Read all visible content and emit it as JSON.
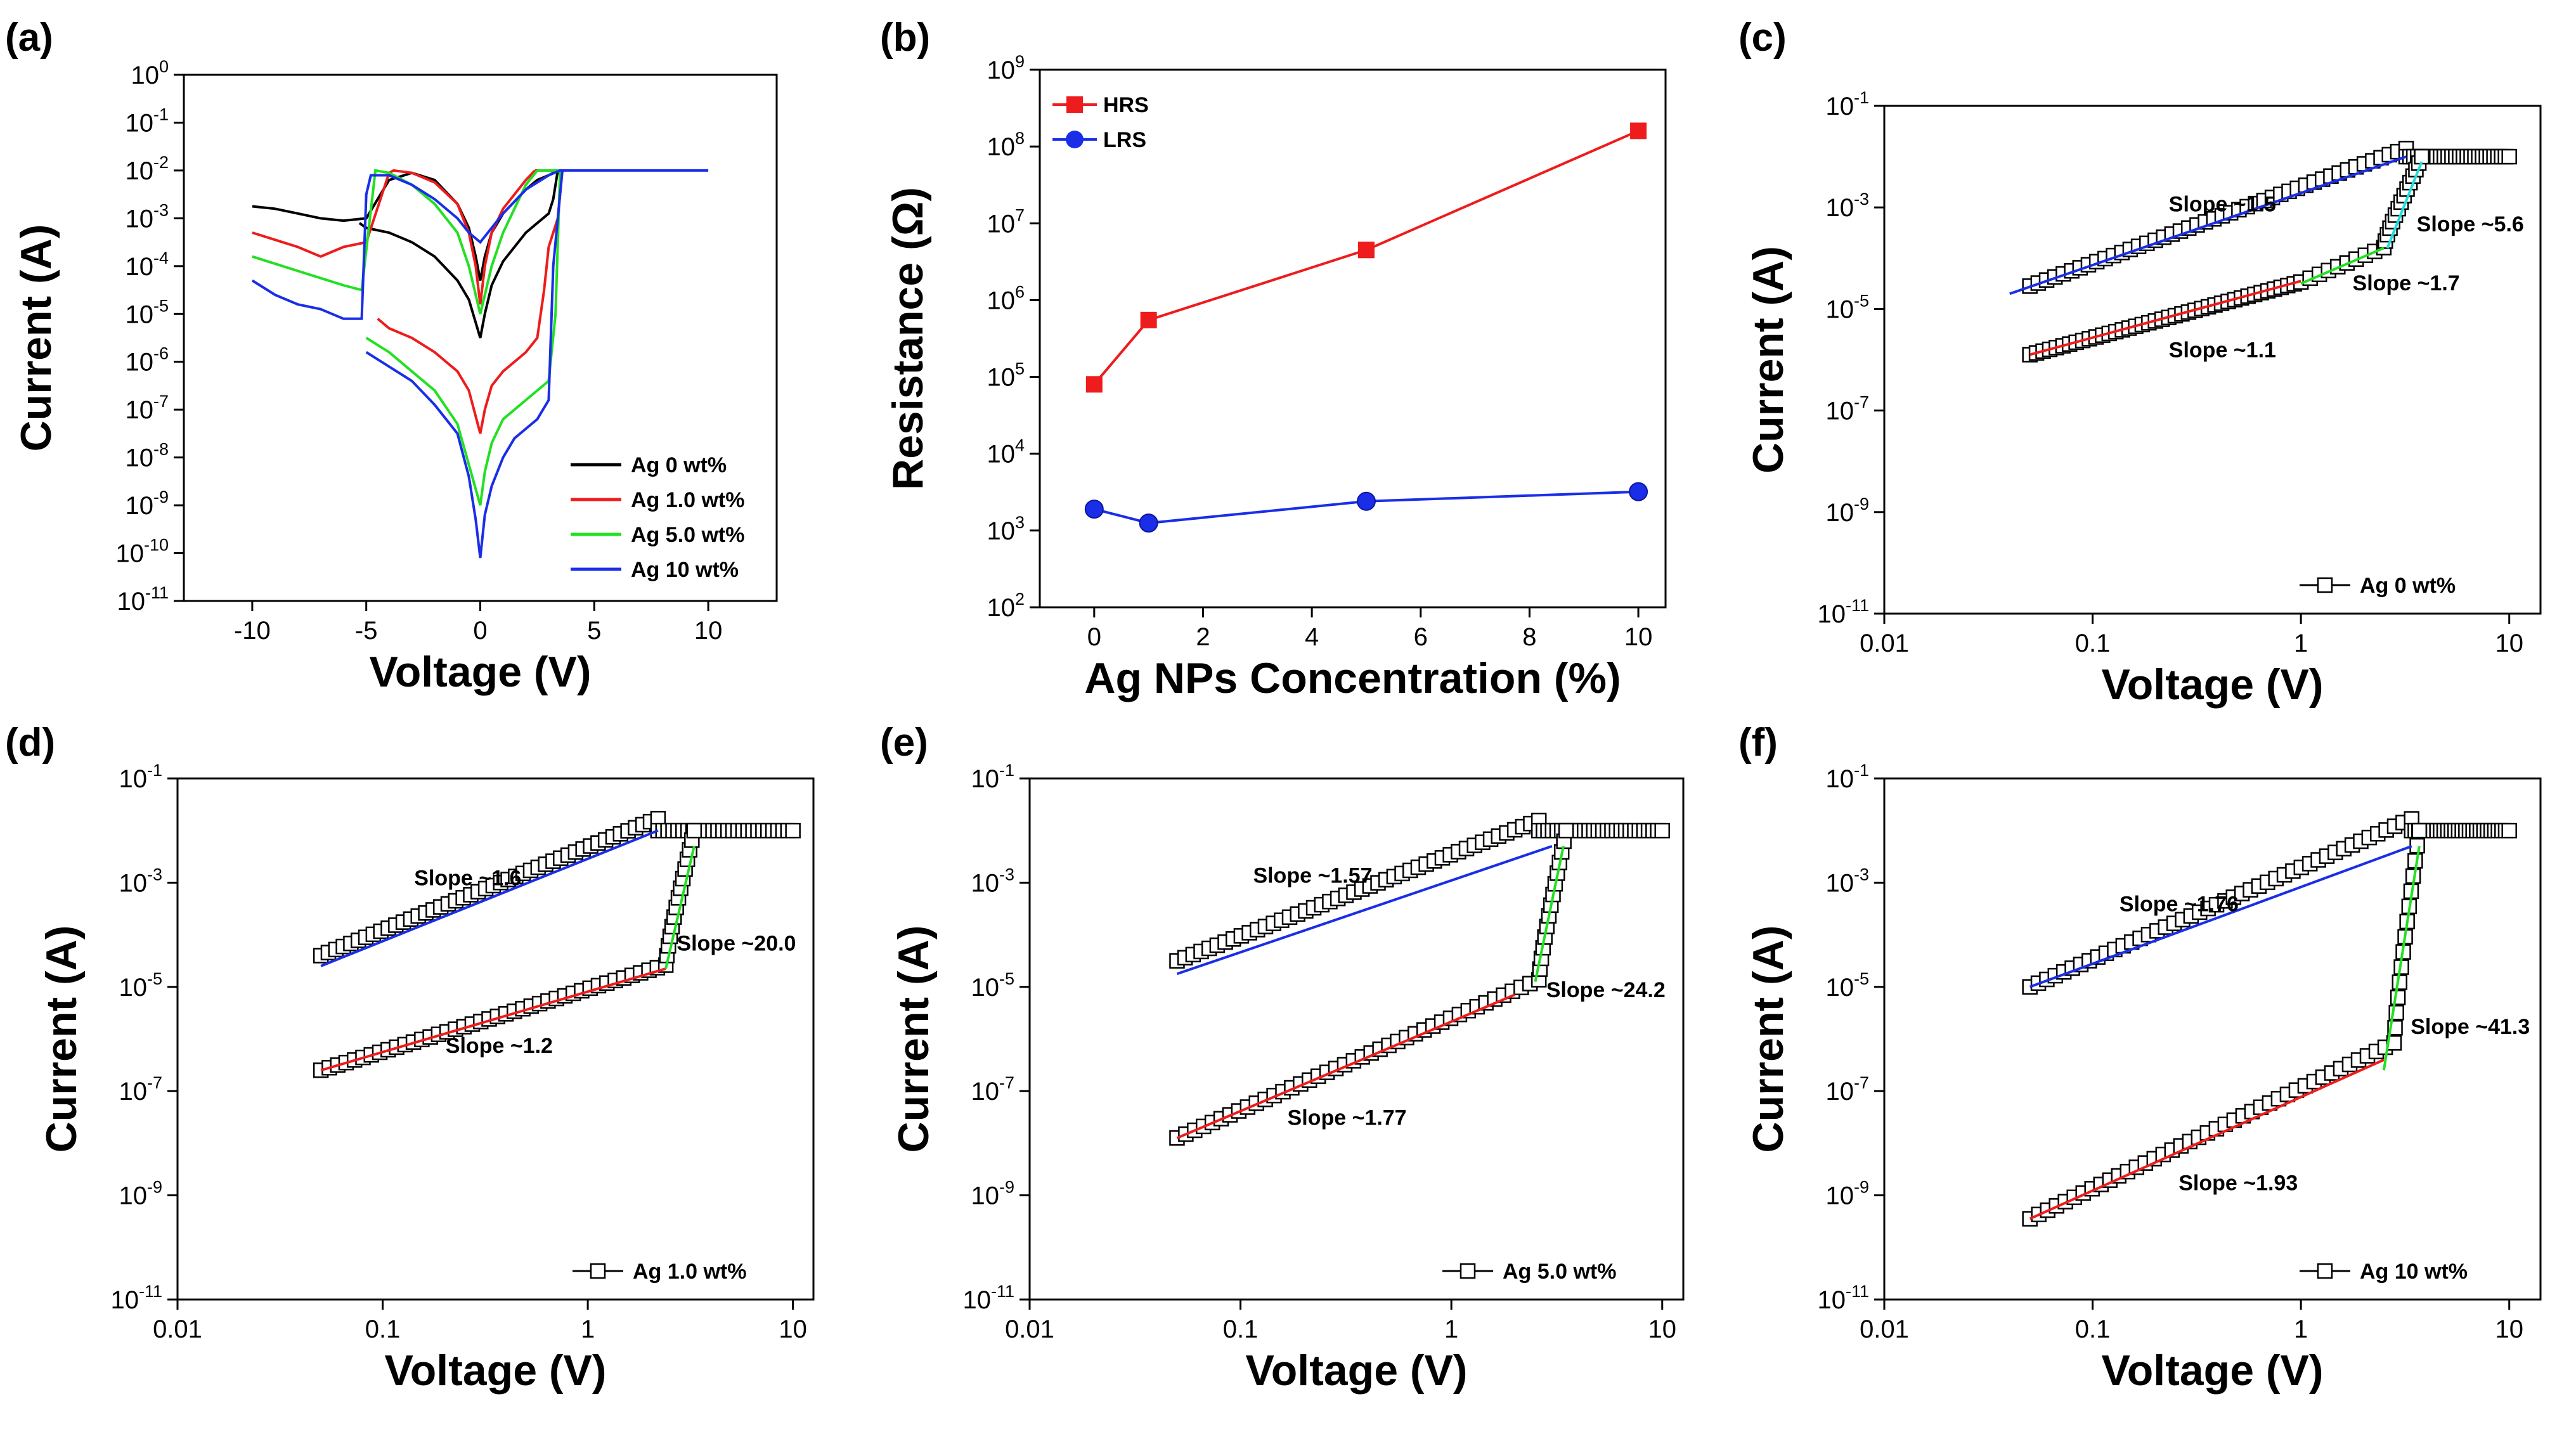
{
  "chart_data": [
    {
      "id": "a",
      "panel_label": "(a)",
      "type": "line",
      "xlabel": "Voltage (V)",
      "ylabel": "Current (A)",
      "x_scale": "linear",
      "y_scale": "log",
      "xlim": [
        -13,
        13
      ],
      "ylim_exp": [
        -11,
        0
      ],
      "x_ticks": [
        -10,
        -5,
        0,
        5,
        10
      ],
      "x_tick_labels": [
        "-10",
        "-5",
        "0",
        "5",
        "10"
      ],
      "y_tick_exps": [
        0,
        -1,
        -2,
        -3,
        -4,
        -5,
        -6,
        -7,
        -8,
        -9,
        -10,
        -11
      ],
      "legend": {
        "position": "bottom-right",
        "entries": [
          "Ag 0 wt%",
          "Ag 1.0 wt%",
          "Ag 5.0 wt%",
          "Ag 10 wt%"
        ]
      },
      "compliance_current_A": 0.01,
      "series": [
        {
          "name": "Ag 0 wt%",
          "color": "#000000",
          "sweep_x": [
            -10,
            -9,
            -8,
            -7,
            -6,
            -5,
            -4.5,
            -4,
            -3,
            -2,
            -1,
            -0.5,
            -0.2,
            0,
            0.2,
            0.5,
            1,
            2,
            2.5,
            3,
            3.4
          ],
          "sweep_log_i": [
            -2.75,
            -2.8,
            -2.9,
            -3.0,
            -3.05,
            -3.0,
            -2.6,
            -2.2,
            -2.05,
            -2.2,
            -2.7,
            -3.2,
            -3.8,
            -4.3,
            -3.8,
            -3.3,
            -2.9,
            -2.4,
            -2.2,
            -2.1,
            -2.0
          ],
          "ret_x": [
            3.4,
            3.2,
            3,
            2,
            1,
            0.5,
            0.2,
            0,
            -0.5,
            -1,
            -2,
            -3,
            -4,
            -5,
            -5.3
          ],
          "ret_log_i": [
            -2.0,
            -2.6,
            -2.9,
            -3.3,
            -3.9,
            -4.4,
            -5.0,
            -5.5,
            -4.7,
            -4.3,
            -3.8,
            -3.5,
            -3.3,
            -3.2,
            -3.1
          ]
        },
        {
          "name": "Ag 1.0 wt%",
          "color": "#ee1c1c",
          "sweep_x": [
            -10,
            -8,
            -7,
            -6,
            -5,
            -4,
            -3.8,
            -3,
            -2,
            -1,
            -0.5,
            -0.2,
            0,
            0.2,
            0.5,
            1,
            2,
            2.4
          ],
          "sweep_log_i": [
            -3.3,
            -3.6,
            -3.8,
            -3.6,
            -3.5,
            -2.05,
            -2.0,
            -2.05,
            -2.25,
            -2.7,
            -3.3,
            -4.0,
            -4.8,
            -4.0,
            -3.3,
            -2.8,
            -2.2,
            -2.0
          ],
          "ret_x": [
            3.6,
            3.4,
            3,
            2.8,
            2.5,
            2,
            1,
            0.5,
            0.2,
            0,
            -0.5,
            -1,
            -2,
            -3,
            -4,
            -4.5
          ],
          "ret_log_i": [
            -2.0,
            -3.0,
            -3.6,
            -4.5,
            -5.5,
            -5.8,
            -6.2,
            -6.5,
            -7.0,
            -7.5,
            -6.6,
            -6.2,
            -5.8,
            -5.5,
            -5.3,
            -5.1
          ]
        },
        {
          "name": "Ag 5.0 wt%",
          "color": "#22e022",
          "sweep_x": [
            -10,
            -8,
            -6,
            -5.2,
            -4.6,
            -4,
            -3,
            -2,
            -1,
            -0.5,
            -0.2,
            0,
            0.2,
            0.5,
            1,
            2,
            2.5
          ],
          "sweep_log_i": [
            -3.8,
            -4.1,
            -4.4,
            -4.5,
            -2.0,
            -2.05,
            -2.3,
            -2.7,
            -3.3,
            -4.0,
            -4.6,
            -5.0,
            -4.6,
            -4.0,
            -3.3,
            -2.3,
            -2.0
          ],
          "ret_x": [
            3.5,
            3.3,
            3,
            2,
            1,
            0.5,
            0.2,
            0,
            -1,
            -2,
            -3,
            -4,
            -5
          ],
          "ret_log_i": [
            -2.0,
            -5.0,
            -6.4,
            -6.8,
            -7.2,
            -7.7,
            -8.3,
            -9.0,
            -7.3,
            -6.6,
            -6.2,
            -5.8,
            -5.5
          ]
        },
        {
          "name": "Ag 10 wt%",
          "color": "#1a2ee8",
          "sweep_x": [
            -10,
            -9,
            -8,
            -7,
            -6,
            -5.2,
            -5,
            -4.8,
            -4,
            -3,
            -2,
            -1,
            -0.5,
            0,
            0.5,
            1,
            2,
            3,
            3.5,
            10
          ],
          "sweep_log_i": [
            -4.3,
            -4.6,
            -4.8,
            -4.9,
            -5.1,
            -5.1,
            -2.5,
            -2.1,
            -2.1,
            -2.3,
            -2.6,
            -3.0,
            -3.3,
            -3.5,
            -3.2,
            -2.9,
            -2.4,
            -2.1,
            -2.0,
            -2.0
          ],
          "ret_x": [
            3.6,
            3.2,
            3,
            2.5,
            2,
            1.5,
            1,
            0.5,
            0.2,
            0,
            -0.2,
            -0.5,
            -1,
            -2,
            -3,
            -4,
            -5
          ],
          "ret_log_i": [
            -2.0,
            -4.0,
            -6.8,
            -7.2,
            -7.4,
            -7.6,
            -8.0,
            -8.6,
            -9.2,
            -10.1,
            -9.3,
            -8.4,
            -7.5,
            -6.9,
            -6.4,
            -6.1,
            -5.8
          ]
        }
      ]
    },
    {
      "id": "b",
      "panel_label": "(b)",
      "type": "line",
      "xlabel": "Ag NPs Concentration (%)",
      "ylabel": "Resistance (Ω)",
      "x_scale": "linear",
      "y_scale": "log",
      "xlim": [
        -1,
        10.5
      ],
      "ylim_exp": [
        2,
        9
      ],
      "x_ticks": [
        0,
        2,
        4,
        6,
        8,
        10
      ],
      "x_tick_labels": [
        "0",
        "2",
        "4",
        "6",
        "8",
        "10"
      ],
      "y_tick_exps": [
        2,
        3,
        4,
        5,
        6,
        7,
        8,
        9
      ],
      "legend": {
        "position": "top-left",
        "entries": [
          "HRS",
          "LRS"
        ]
      },
      "series": [
        {
          "name": "HRS",
          "color": "#ee1c1c",
          "marker": "square",
          "x": [
            0,
            1,
            5,
            10
          ],
          "values": [
            80000,
            550000,
            4500000,
            160000000
          ]
        },
        {
          "name": "LRS",
          "color": "#1a2ee8",
          "marker": "circle",
          "x": [
            0,
            1,
            5,
            10
          ],
          "values": [
            1900,
            1250,
            2400,
            3200
          ]
        }
      ]
    },
    {
      "id": "c",
      "panel_label": "(c)",
      "type": "scatter",
      "xlabel": "Voltage (V)",
      "ylabel": "Current (A)",
      "x_scale": "log",
      "y_scale": "log",
      "xlim_exp": [
        -2,
        1.15
      ],
      "ylim_exp": [
        -11,
        -1
      ],
      "x_tick_labels": [
        "0.01",
        "0.1",
        "1",
        "10"
      ],
      "y_tick_exps": [
        -1,
        -3,
        -5,
        -7,
        -9,
        -11
      ],
      "legend_label": "Ag 0 wt%",
      "vset": 3.8,
      "lrs": {
        "v0": 0.05,
        "log_i0": -4.55,
        "slope": 1.5,
        "v1": 3.2
      },
      "hrs": {
        "v0": 0.05,
        "log_i0": -5.9,
        "slope": 1.1,
        "v1": 1.0
      },
      "mid": {
        "slope": 1.7,
        "v1": 2.5,
        "log_i1": -3.8
      },
      "fits": [
        {
          "color": "#1a2ee8",
          "v": [
            0.04,
            3.2
          ],
          "log_i": [
            -4.7,
            -2.0
          ]
        },
        {
          "color": "#ee1c1c",
          "v": [
            0.05,
            1.0
          ],
          "log_i": [
            -5.9,
            -4.45
          ]
        },
        {
          "color": "#22e022",
          "v": [
            1.0,
            2.5
          ],
          "log_i": [
            -4.5,
            -3.8
          ]
        },
        {
          "color": "#22dede",
          "v": [
            2.6,
            3.8
          ],
          "log_i": [
            -3.8,
            -2.1
          ]
        }
      ],
      "annotations": [
        {
          "text": "Slope ~1.5",
          "v": 0.42,
          "log_i": -3.08
        },
        {
          "text": "Slope ~5.6",
          "v": 6.5,
          "log_i": -3.47
        },
        {
          "text": "Slope ~1.7",
          "v": 3.2,
          "log_i": -4.63
        },
        {
          "text": "Slope ~1.1",
          "v": 0.42,
          "log_i": -5.95
        }
      ]
    },
    {
      "id": "d",
      "panel_label": "(d)",
      "type": "scatter",
      "xlabel": "Voltage (V)",
      "ylabel": "Current (A)",
      "x_scale": "log",
      "y_scale": "log",
      "xlim_exp": [
        -2,
        1.1
      ],
      "ylim_exp": [
        -11,
        -1
      ],
      "x_tick_labels": [
        "0.01",
        "0.1",
        "1",
        "10"
      ],
      "y_tick_exps": [
        -1,
        -3,
        -5,
        -7,
        -9,
        -11
      ],
      "legend_label": "Ag 1.0 wt%",
      "vset": 3.3,
      "lrs": {
        "v0": 0.05,
        "log_i0": -4.4,
        "slope": 1.6,
        "v1": 2.2
      },
      "hrs": {
        "v0": 0.05,
        "log_i0": -6.6,
        "slope": 1.2,
        "v1": 2.4
      },
      "mid": null,
      "fits": [
        {
          "color": "#1a2ee8",
          "v": [
            0.05,
            2.2
          ],
          "log_i": [
            -4.6,
            -2.0
          ]
        },
        {
          "color": "#ee1c1c",
          "v": [
            0.05,
            2.4
          ],
          "log_i": [
            -6.6,
            -4.65
          ]
        },
        {
          "color": "#22e022",
          "v": [
            2.4,
            3.3
          ],
          "log_i": [
            -4.65,
            -2.3
          ]
        }
      ],
      "annotations": [
        {
          "text": "Slope ~1.6",
          "v": 0.26,
          "log_i": -3.05
        },
        {
          "text": "Slope ~20.0",
          "v": 5.3,
          "log_i": -4.3
        },
        {
          "text": "Slope ~1.2",
          "v": 0.37,
          "log_i": -6.27
        }
      ]
    },
    {
      "id": "e",
      "panel_label": "(e)",
      "type": "scatter",
      "xlabel": "Voltage (V)",
      "ylabel": "Current (A)",
      "x_scale": "log",
      "y_scale": "log",
      "xlim_exp": [
        -2,
        1.1
      ],
      "ylim_exp": [
        -11,
        -1
      ],
      "x_tick_labels": [
        "0.01",
        "0.1",
        "1",
        "10"
      ],
      "y_tick_exps": [
        -1,
        -3,
        -5,
        -7,
        -9,
        -11
      ],
      "legend_label": "Ag 5.0 wt%",
      "vset": 3.5,
      "lrs": {
        "v0": 0.05,
        "log_i0": -4.5,
        "slope": 1.57,
        "v1": 2.6
      },
      "hrs": {
        "v0": 0.05,
        "log_i0": -7.9,
        "slope": 1.77,
        "v1": 2.6
      },
      "mid": null,
      "fits": [
        {
          "color": "#1a2ee8",
          "v": [
            0.05,
            3.0
          ],
          "log_i": [
            -4.75,
            -2.3
          ]
        },
        {
          "color": "#ee1c1c",
          "v": [
            0.05,
            2.0
          ],
          "log_i": [
            -7.9,
            -5.15
          ]
        },
        {
          "color": "#22e022",
          "v": [
            2.5,
            3.4
          ],
          "log_i": [
            -4.9,
            -2.3
          ]
        }
      ],
      "annotations": [
        {
          "text": "Slope ~1.57",
          "v": 0.22,
          "log_i": -3.0
        },
        {
          "text": "Slope ~24.2",
          "v": 5.4,
          "log_i": -5.2
        },
        {
          "text": "Slope ~1.77",
          "v": 0.32,
          "log_i": -7.65
        }
      ]
    },
    {
      "id": "f",
      "panel_label": "(f)",
      "type": "scatter",
      "xlabel": "Voltage (V)",
      "ylabel": "Current (A)",
      "x_scale": "log",
      "y_scale": "log",
      "xlim_exp": [
        -2,
        1.15
      ],
      "ylim_exp": [
        -11,
        -1
      ],
      "x_tick_labels": [
        "0.01",
        "0.1",
        "1",
        "10"
      ],
      "y_tick_exps": [
        -1,
        -3,
        -5,
        -7,
        -9,
        -11
      ],
      "legend_label": "Ag 10 wt%",
      "vset": 3.7,
      "lrs": {
        "v0": 0.05,
        "log_i0": -5.0,
        "slope": 1.76,
        "v1": 3.4
      },
      "hrs": {
        "v0": 0.05,
        "log_i0": -9.45,
        "slope": 1.93,
        "v1": 2.8
      },
      "mid": null,
      "fits": [
        {
          "color": "#1a2ee8",
          "v": [
            0.05,
            3.4
          ],
          "log_i": [
            -5.0,
            -2.3
          ]
        },
        {
          "color": "#ee1c1c",
          "v": [
            0.05,
            2.5
          ],
          "log_i": [
            -9.45,
            -6.4
          ]
        },
        {
          "color": "#22e022",
          "v": [
            2.5,
            3.7
          ],
          "log_i": [
            -6.6,
            -2.3
          ]
        }
      ],
      "annotations": [
        {
          "text": "Slope ~1.76",
          "v": 0.26,
          "log_i": -3.55
        },
        {
          "text": "Slope ~41.3",
          "v": 6.5,
          "log_i": -5.9
        },
        {
          "text": "Slope ~1.93",
          "v": 0.5,
          "log_i": -8.9
        }
      ]
    }
  ]
}
